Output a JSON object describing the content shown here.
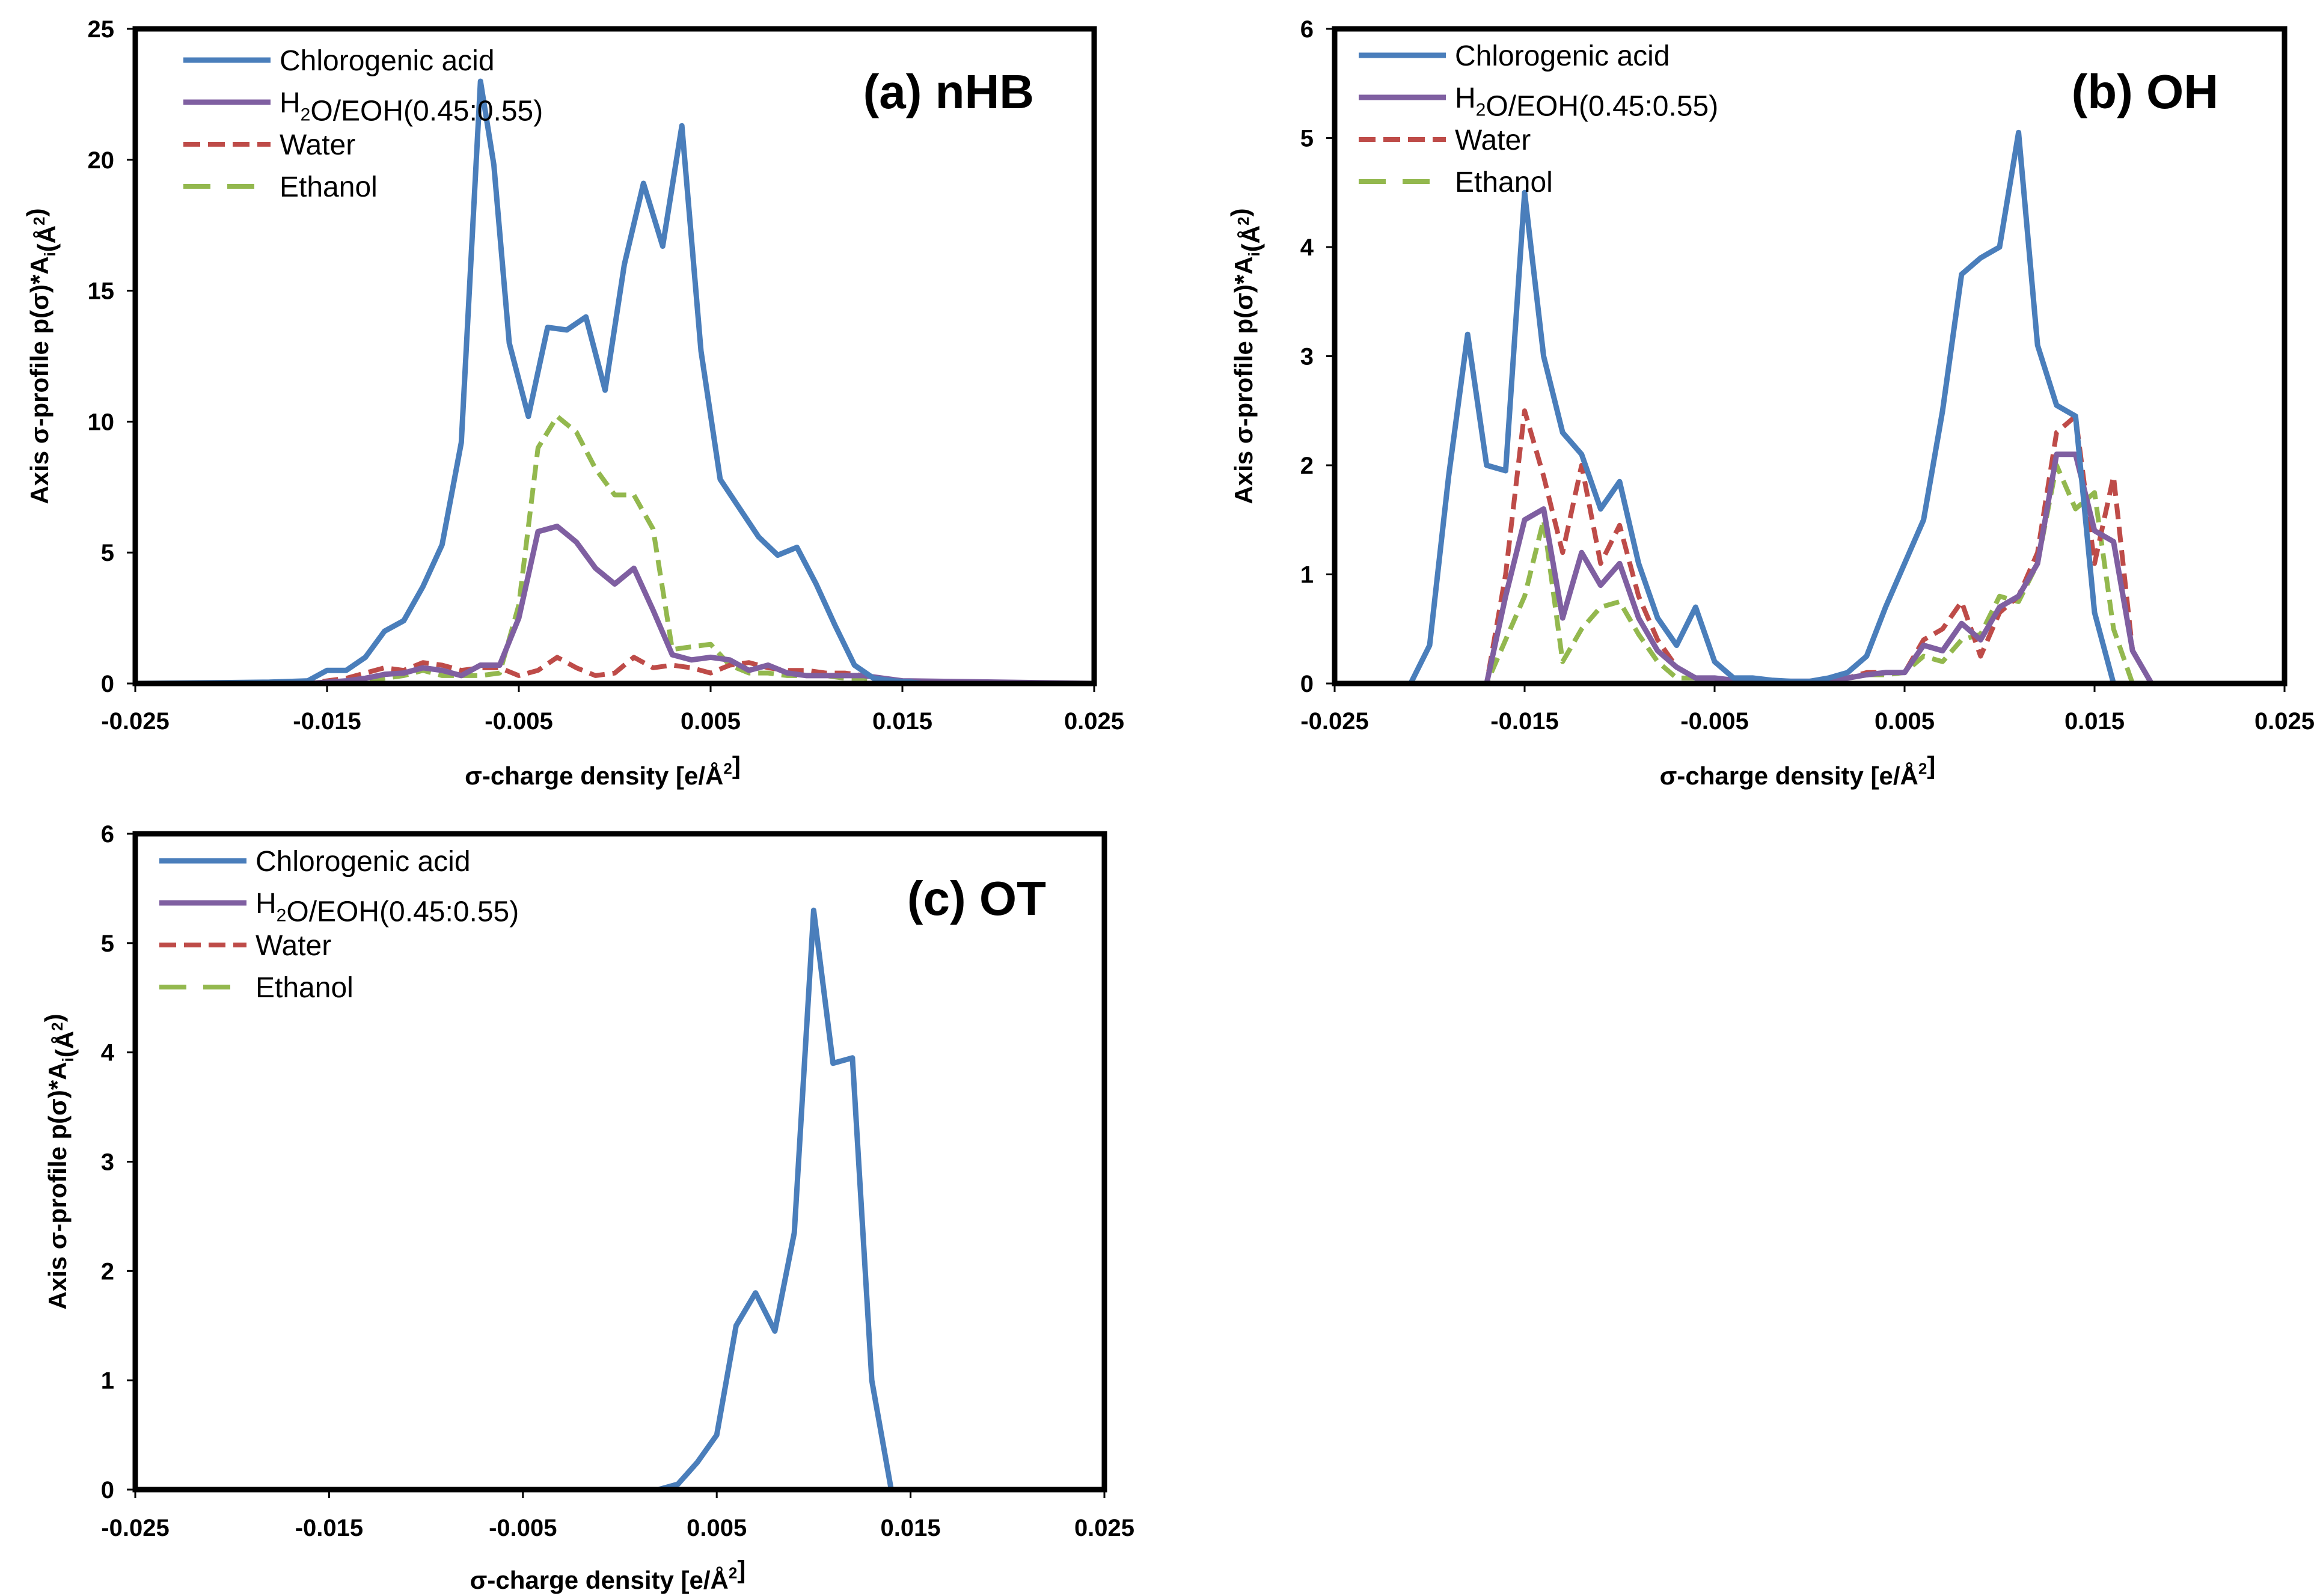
{
  "chart_data": [
    {
      "type": "line",
      "title": "(a) nHB",
      "xlabel": "σ-charge density [e/Å²]",
      "ylabel": "Axis σ-profile p(σ)*Ai(Å²)",
      "xlim": [
        -0.025,
        0.025
      ],
      "ylim": [
        0,
        25
      ],
      "xticks": [
        -0.025,
        -0.015,
        -0.005,
        0.005,
        0.015,
        0.025
      ],
      "xtick_labels": [
        "-0.025",
        "-0.015",
        "-0.005",
        "0.005",
        "0.015",
        "0.025"
      ],
      "yticks": [
        0,
        5,
        10,
        15,
        20,
        25
      ],
      "ytick_labels": [
        "0",
        "5",
        "10",
        "15",
        "20",
        "25"
      ],
      "grid": false,
      "legend_position": "top-left",
      "series": [
        {
          "name": "Chlorogenic acid",
          "color": "#4a7ebb",
          "style": "solid",
          "x": [
            -0.025,
            -0.018,
            -0.016,
            -0.015,
            -0.014,
            -0.013,
            -0.012,
            -0.011,
            -0.01,
            -0.009,
            -0.008,
            -0.007,
            -0.0063,
            -0.0055,
            -0.0045,
            -0.0035,
            -0.0025,
            -0.0015,
            -0.0005,
            0.0005,
            0.0015,
            0.0025,
            0.0035,
            0.0045,
            0.0055,
            0.0065,
            0.0075,
            0.0085,
            0.0095,
            0.0105,
            0.0115,
            0.0125,
            0.0135,
            0.0145,
            0.0155,
            0.016,
            0.025
          ],
          "y": [
            0,
            0.05,
            0.1,
            0.5,
            0.5,
            1.0,
            2.0,
            2.4,
            3.7,
            5.3,
            9.2,
            23.0,
            19.8,
            13.0,
            10.2,
            13.6,
            13.5,
            14.0,
            11.2,
            16.0,
            19.1,
            16.7,
            21.3,
            12.7,
            7.8,
            6.7,
            5.6,
            4.9,
            5.2,
            3.8,
            2.2,
            0.7,
            0.2,
            0.1,
            0.05,
            0,
            0
          ]
        },
        {
          "name": "H2O/EOH(0.45:0.55)",
          "color": "#7f5fa1",
          "style": "solid",
          "x": [
            -0.025,
            -0.016,
            -0.014,
            -0.013,
            -0.012,
            -0.011,
            -0.01,
            -0.009,
            -0.008,
            -0.007,
            -0.006,
            -0.005,
            -0.004,
            -0.003,
            -0.002,
            -0.001,
            0.0,
            0.001,
            0.002,
            0.003,
            0.004,
            0.005,
            0.006,
            0.007,
            0.008,
            0.009,
            0.01,
            0.011,
            0.012,
            0.013,
            0.014,
            0.015,
            0.025
          ],
          "y": [
            0,
            0,
            0.1,
            0.2,
            0.35,
            0.4,
            0.6,
            0.5,
            0.3,
            0.7,
            0.7,
            2.5,
            5.8,
            6.0,
            5.4,
            4.4,
            3.8,
            4.4,
            2.8,
            1.1,
            0.9,
            1.0,
            0.9,
            0.5,
            0.7,
            0.4,
            0.3,
            0.3,
            0.3,
            0.3,
            0.2,
            0.1,
            0
          ]
        },
        {
          "name": "Water",
          "color": "#be4b48",
          "style": "dashed",
          "x": [
            -0.025,
            -0.016,
            -0.014,
            -0.013,
            -0.012,
            -0.011,
            -0.01,
            -0.009,
            -0.008,
            -0.007,
            -0.006,
            -0.005,
            -0.004,
            -0.003,
            -0.002,
            -0.001,
            0.0,
            0.001,
            0.002,
            0.003,
            0.004,
            0.005,
            0.006,
            0.007,
            0.008,
            0.009,
            0.01,
            0.011,
            0.012,
            0.013,
            0.014,
            0.015,
            0.025
          ],
          "y": [
            0,
            0,
            0.2,
            0.4,
            0.6,
            0.5,
            0.8,
            0.7,
            0.5,
            0.6,
            0.6,
            0.3,
            0.5,
            1.0,
            0.6,
            0.3,
            0.4,
            1.0,
            0.6,
            0.7,
            0.6,
            0.4,
            0.7,
            0.8,
            0.6,
            0.5,
            0.5,
            0.4,
            0.4,
            0.3,
            0.2,
            0.1,
            0
          ]
        },
        {
          "name": "Ethanol",
          "color": "#93b84e",
          "style": "dashed",
          "x": [
            -0.025,
            -0.016,
            -0.014,
            -0.013,
            -0.012,
            -0.011,
            -0.01,
            -0.009,
            -0.008,
            -0.007,
            -0.006,
            -0.005,
            -0.004,
            -0.003,
            -0.002,
            -0.001,
            0.0,
            0.001,
            0.002,
            0.003,
            0.004,
            0.005,
            0.006,
            0.007,
            0.008,
            0.009,
            0.01,
            0.011,
            0.012,
            0.013,
            0.014,
            0.015,
            0.025
          ],
          "y": [
            0,
            0,
            0.1,
            0.1,
            0.2,
            0.3,
            0.5,
            0.3,
            0.3,
            0.3,
            0.4,
            3.0,
            9.0,
            10.2,
            9.6,
            8.2,
            7.2,
            7.2,
            5.9,
            1.3,
            1.4,
            1.5,
            0.7,
            0.4,
            0.4,
            0.3,
            0.3,
            0.3,
            0.2,
            0.2,
            0.1,
            0.05,
            0
          ]
        }
      ]
    },
    {
      "type": "line",
      "title": "(b) OH",
      "xlabel": "σ-charge density [e/Å²]",
      "ylabel": "Axis σ-profile p(σ)*Ai(Å²)",
      "xlim": [
        -0.025,
        0.025
      ],
      "ylim": [
        0,
        6
      ],
      "xticks": [
        -0.025,
        -0.015,
        -0.005,
        0.005,
        0.015,
        0.025
      ],
      "xtick_labels": [
        "-0.025",
        "-0.015",
        "-0.005",
        "0.005",
        "0.015",
        "0.025"
      ],
      "yticks": [
        0,
        1,
        2,
        3,
        4,
        5,
        6
      ],
      "ytick_labels": [
        "0",
        "1",
        "2",
        "3",
        "4",
        "5",
        "6"
      ],
      "grid": false,
      "legend_position": "top-left",
      "series": [
        {
          "name": "Chlorogenic acid",
          "color": "#4a7ebb",
          "style": "solid",
          "x": [
            -0.025,
            -0.021,
            -0.02,
            -0.019,
            -0.018,
            -0.017,
            -0.016,
            -0.015,
            -0.014,
            -0.013,
            -0.012,
            -0.011,
            -0.01,
            -0.009,
            -0.008,
            -0.007,
            -0.006,
            -0.005,
            -0.004,
            -0.003,
            -0.002,
            -0.001,
            0.0,
            0.001,
            0.002,
            0.003,
            0.004,
            0.005,
            0.006,
            0.007,
            0.008,
            0.009,
            0.01,
            0.011,
            0.012,
            0.013,
            0.014,
            0.015,
            0.016,
            0.025
          ],
          "y": [
            0,
            0,
            0.35,
            1.9,
            3.2,
            2.0,
            1.95,
            4.5,
            3.0,
            2.3,
            2.1,
            1.6,
            1.85,
            1.1,
            0.6,
            0.35,
            0.7,
            0.2,
            0.05,
            0.05,
            0.03,
            0.02,
            0.02,
            0.05,
            0.1,
            0.25,
            0.7,
            1.1,
            1.5,
            2.5,
            3.75,
            3.9,
            4.0,
            5.05,
            3.1,
            2.55,
            2.45,
            0.65,
            0,
            0
          ]
        },
        {
          "name": "H2O/EOH(0.45:0.55)",
          "color": "#7f5fa1",
          "style": "solid",
          "x": [
            -0.025,
            -0.017,
            -0.016,
            -0.015,
            -0.014,
            -0.013,
            -0.012,
            -0.011,
            -0.01,
            -0.009,
            -0.008,
            -0.007,
            -0.006,
            -0.005,
            -0.004,
            -0.003,
            -0.002,
            -0.001,
            0.0,
            0.001,
            0.002,
            0.003,
            0.004,
            0.005,
            0.006,
            0.007,
            0.008,
            0.009,
            0.01,
            0.011,
            0.012,
            0.013,
            0.014,
            0.015,
            0.016,
            0.017,
            0.018,
            0.025
          ],
          "y": [
            0,
            0,
            0.8,
            1.5,
            1.6,
            0.6,
            1.2,
            0.9,
            1.1,
            0.6,
            0.3,
            0.15,
            0.05,
            0.05,
            0.03,
            0.02,
            0.02,
            0.02,
            0.02,
            0.03,
            0.05,
            0.08,
            0.1,
            0.1,
            0.35,
            0.3,
            0.55,
            0.4,
            0.7,
            0.8,
            1.1,
            2.1,
            2.1,
            1.4,
            1.3,
            0.3,
            0,
            0
          ]
        },
        {
          "name": "Water",
          "color": "#be4b48",
          "style": "dashed",
          "x": [
            -0.025,
            -0.017,
            -0.016,
            -0.015,
            -0.014,
            -0.013,
            -0.012,
            -0.011,
            -0.01,
            -0.009,
            -0.008,
            -0.007,
            -0.006,
            -0.005,
            -0.004,
            -0.003,
            -0.002,
            -0.001,
            0.0,
            0.001,
            0.002,
            0.003,
            0.004,
            0.005,
            0.006,
            0.007,
            0.008,
            0.009,
            0.01,
            0.011,
            0.012,
            0.013,
            0.014,
            0.015,
            0.016,
            0.017,
            0.018,
            0.025
          ],
          "y": [
            0,
            0,
            1.0,
            2.5,
            1.9,
            1.2,
            2.0,
            1.1,
            1.45,
            0.8,
            0.4,
            0.15,
            0.05,
            0.05,
            0.03,
            0.02,
            0.02,
            0.02,
            0.02,
            0.03,
            0.05,
            0.1,
            0.1,
            0.1,
            0.4,
            0.5,
            0.75,
            0.25,
            0.65,
            0.8,
            1.2,
            2.3,
            2.45,
            1.1,
            1.9,
            0.3,
            0,
            0
          ]
        },
        {
          "name": "Ethanol",
          "color": "#93b84e",
          "style": "dashed",
          "x": [
            -0.025,
            -0.017,
            -0.016,
            -0.015,
            -0.014,
            -0.013,
            -0.012,
            -0.011,
            -0.01,
            -0.009,
            -0.008,
            -0.007,
            -0.006,
            -0.005,
            -0.004,
            -0.003,
            -0.002,
            -0.001,
            0.0,
            0.001,
            0.002,
            0.003,
            0.004,
            0.005,
            0.006,
            0.007,
            0.008,
            0.009,
            0.01,
            0.011,
            0.012,
            0.013,
            0.014,
            0.015,
            0.016,
            0.017,
            0.018,
            0.025
          ],
          "y": [
            0,
            0,
            0.4,
            0.8,
            1.5,
            0.2,
            0.5,
            0.7,
            0.75,
            0.45,
            0.2,
            0.05,
            0.05,
            0.05,
            0.03,
            0.02,
            0.02,
            0.02,
            0.02,
            0.03,
            0.05,
            0.08,
            0.08,
            0.1,
            0.25,
            0.2,
            0.4,
            0.45,
            0.8,
            0.75,
            1.1,
            2.0,
            1.6,
            1.75,
            0.5,
            0,
            0,
            0
          ]
        }
      ]
    },
    {
      "type": "line",
      "title": "(c) OT",
      "xlabel": "σ-charge density [e/Å²]",
      "ylabel": "Axis σ-profile p(σ)*Ai(Å²)",
      "xlim": [
        -0.025,
        0.025
      ],
      "ylim": [
        0,
        6
      ],
      "xticks": [
        -0.025,
        -0.015,
        -0.005,
        0.005,
        0.015,
        0.025
      ],
      "xtick_labels": [
        "-0.025",
        "-0.015",
        "-0.005",
        "0.005",
        "0.015",
        "0.025"
      ],
      "yticks": [
        0,
        1,
        2,
        3,
        4,
        5,
        6
      ],
      "ytick_labels": [
        "0",
        "1",
        "2",
        "3",
        "4",
        "5",
        "6"
      ],
      "grid": false,
      "legend_position": "top-left",
      "series": [
        {
          "name": "Chlorogenic acid",
          "color": "#4a7ebb",
          "style": "solid",
          "x": [
            -0.025,
            0.002,
            0.003,
            0.004,
            0.005,
            0.006,
            0.007,
            0.008,
            0.009,
            0.01,
            0.011,
            0.012,
            0.013,
            0.014,
            0.025
          ],
          "y": [
            0,
            0,
            0.05,
            0.25,
            0.5,
            1.5,
            1.8,
            1.45,
            2.35,
            5.3,
            3.9,
            3.95,
            1.0,
            0,
            0
          ]
        },
        {
          "name": "H2O/EOH(0.45:0.55)",
          "color": "#7f5fa1",
          "style": "solid",
          "x": [
            -0.025,
            0.025
          ],
          "y": [
            0,
            0
          ]
        },
        {
          "name": "Water",
          "color": "#be4b48",
          "style": "dashed",
          "x": [
            -0.025,
            0.025
          ],
          "y": [
            0,
            0
          ]
        },
        {
          "name": "Ethanol",
          "color": "#93b84e",
          "style": "dashed",
          "x": [
            -0.025,
            0.025
          ],
          "y": [
            0,
            0
          ]
        }
      ]
    }
  ]
}
